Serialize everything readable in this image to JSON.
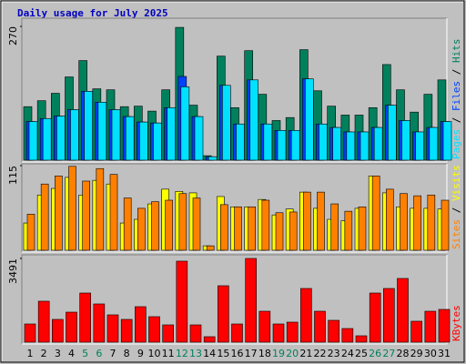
{
  "legend_separator": " / ",
  "chart_data": [
    {
      "type": "bar",
      "title": "Daily usage for July 2025",
      "ylim": [
        0,
        270
      ],
      "yticks": [
        270
      ],
      "series": [
        {
          "name": "Hits",
          "color": "#00805c",
          "values": [
            108,
            120,
            135,
            168,
            201,
            144,
            142,
            108,
            109,
            99,
            142,
            268,
            111,
            9,
            210,
            106,
            221,
            133,
            80,
            86,
            223,
            140,
            109,
            91,
            91,
            106,
            193,
            142,
            97,
            133,
            162
          ]
        },
        {
          "name": "Files",
          "color": "#0040ff",
          "values": [
            78,
            84,
            89,
            102,
            139,
            117,
            102,
            88,
            77,
            75,
            106,
            169,
            88,
            7,
            151,
            73,
            162,
            73,
            60,
            60,
            164,
            73,
            66,
            57,
            57,
            66,
            111,
            80,
            57,
            66,
            78
          ]
        },
        {
          "name": "Pages",
          "color": "#00e0ff",
          "values": [
            78,
            84,
            89,
            102,
            139,
            117,
            102,
            88,
            77,
            75,
            106,
            148,
            88,
            7,
            151,
            73,
            162,
            73,
            60,
            60,
            164,
            73,
            66,
            57,
            57,
            66,
            111,
            80,
            57,
            66,
            78
          ]
        }
      ]
    },
    {
      "type": "bar",
      "ylim": [
        0,
        115
      ],
      "yticks": [
        115
      ],
      "series": [
        {
          "name": "Visits",
          "color": "#ffff00",
          "values": [
            37,
            75,
            84,
            99,
            75,
            95,
            90,
            37,
            42,
            63,
            83,
            80,
            78,
            6,
            73,
            59,
            59,
            69,
            48,
            56,
            79,
            57,
            42,
            40,
            57,
            101,
            78,
            59,
            57,
            57,
            56
          ]
        },
        {
          "name": "Sites",
          "color": "#ff8000",
          "values": [
            49,
            90,
            101,
            114,
            94,
            111,
            103,
            71,
            57,
            66,
            68,
            77,
            71,
            6,
            62,
            59,
            59,
            68,
            51,
            52,
            79,
            79,
            63,
            53,
            59,
            101,
            83,
            77,
            74,
            75,
            68
          ]
        }
      ]
    },
    {
      "type": "bar",
      "ylim": [
        0,
        3491
      ],
      "yticks": [
        3491
      ],
      "categories": [
        "1",
        "2",
        "3",
        "4",
        "5",
        "6",
        "7",
        "8",
        "9",
        "10",
        "11",
        "12",
        "13",
        "14",
        "15",
        "16",
        "17",
        "18",
        "19",
        "20",
        "21",
        "22",
        "23",
        "24",
        "25",
        "26",
        "27",
        "28",
        "29",
        "30",
        "31"
      ],
      "label_colors": [
        "#000000",
        "#000000",
        "#000000",
        "#000000",
        "#00805c",
        "#00805c",
        "#000000",
        "#000000",
        "#000000",
        "#000000",
        "#000000",
        "#00805c",
        "#00805c",
        "#000000",
        "#000000",
        "#000000",
        "#000000",
        "#000000",
        "#00805c",
        "#00805c",
        "#000000",
        "#000000",
        "#000000",
        "#000000",
        "#000000",
        "#00805c",
        "#00805c",
        "#000000",
        "#000000",
        "#000000",
        "#000000"
      ],
      "series": [
        {
          "name": "KBytes",
          "color": "#ff0000",
          "values": [
            759,
            1708,
            949,
            1252,
            2049,
            1594,
            1139,
            949,
            1480,
            1063,
            721,
            3378,
            721,
            228,
            2353,
            759,
            3491,
            1290,
            759,
            835,
            2239,
            1290,
            911,
            569,
            266,
            2049,
            2239,
            2657,
            873,
            1290,
            1366
          ]
        }
      ]
    }
  ]
}
